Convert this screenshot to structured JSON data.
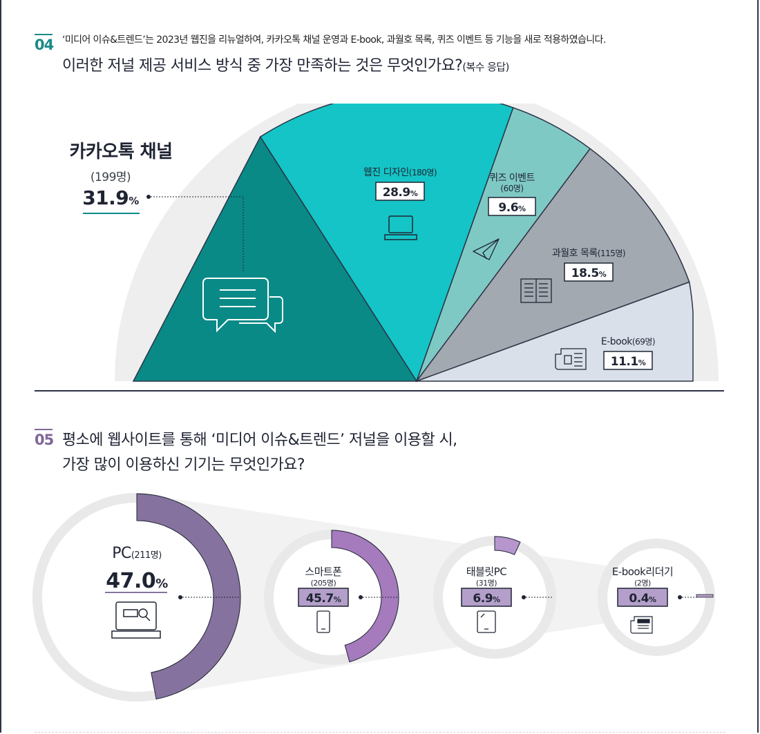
{
  "q4": {
    "number": "04",
    "intro": "‘미디어 이슈&트렌드’는 2023년 웹진을 리뉴얼하여, 카카오톡 채널 운영과 E-book, 과월호 목록, 퀴즈 이벤트 등 기능을 새로 적용하였습니다.",
    "question": "이러한 저널 제공 서비스 방식 중 가장 만족하는 것은 무엇인가요?",
    "question_suffix": "(복수 응답)"
  },
  "q5": {
    "number": "05",
    "question_line1": "평소에 웹사이트를 통해 ‘미디어 이슈&트렌드’ 저널을 이용할 시,",
    "question_line2": "가장 많이 이용하신 기기는 무엇인가요?"
  },
  "chart_data": [
    {
      "type": "pie",
      "variant": "half-pie",
      "categories": [
        "카카오톡 채널",
        "웹진 디자인",
        "퀴즈 이벤트",
        "과월호 목록",
        "E-book"
      ],
      "counts": [
        "(199명)",
        "(180명)",
        "(60명)",
        "(115명)",
        "(69명)"
      ],
      "values": [
        31.9,
        28.9,
        9.6,
        18.5,
        11.1
      ],
      "value_labels": [
        "31.9",
        "28.9",
        "9.6",
        "18.5",
        "11.1"
      ],
      "unit": "%",
      "colors": [
        "#0a8a87",
        "#14c4c6",
        "#7fc9c5",
        "#a3a9b0",
        "#d9e0e9"
      ],
      "icons": [
        "chat-bubbles-icon",
        "laptop-icon",
        "paper-plane-icon",
        "book-icon",
        "newspaper-icon"
      ]
    },
    {
      "type": "pie",
      "variant": "ring-gauges",
      "categories": [
        "PC",
        "스마트폰",
        "태블릿PC",
        "E-book리더기"
      ],
      "counts": [
        "(211명)",
        "(205명)",
        "(31명)",
        "(2명)"
      ],
      "values": [
        47.0,
        45.7,
        6.9,
        0.4
      ],
      "value_labels": [
        "47.0",
        "45.7",
        "6.9",
        "0.4"
      ],
      "unit": "%",
      "colors": [
        "#86729e",
        "#a57bbd",
        "#b795cd",
        "#b4a0c5"
      ],
      "icons": [
        "laptop-search-icon",
        "smartphone-icon",
        "tablet-icon",
        "ebook-reader-icon"
      ]
    }
  ]
}
